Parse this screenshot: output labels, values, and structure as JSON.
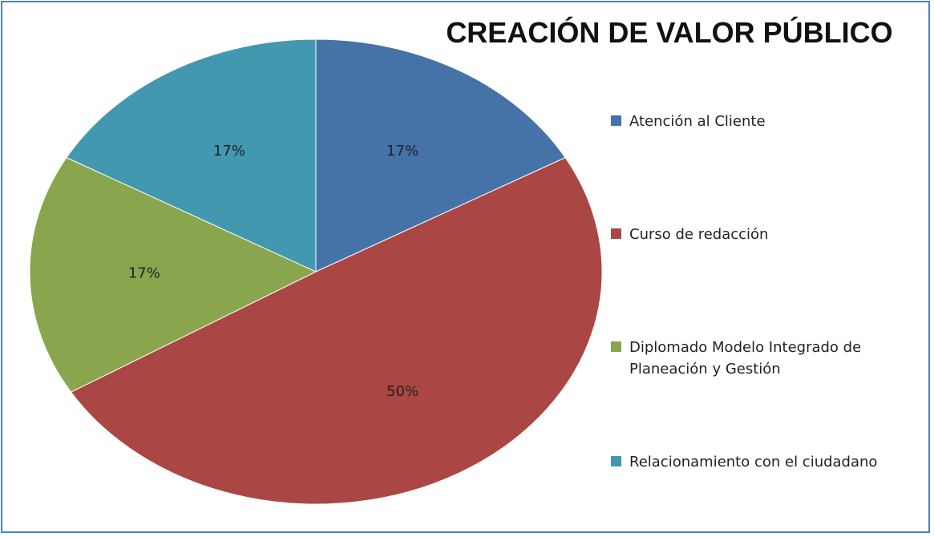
{
  "chart_data": {
    "type": "pie",
    "title": "CREACIÓN DE VALOR PÚBLICO",
    "categories": [
      "Atención al Cliente",
      "Curso de redacción",
      "Diplomado Modelo Integrado de Planeación y Gestión",
      "Relacionamiento con el ciudadano"
    ],
    "values": [
      17,
      50,
      17,
      17
    ],
    "value_labels": [
      "17%",
      "50%",
      "17%",
      "17%"
    ],
    "colors": [
      "#4572a7",
      "#aa4643",
      "#89a54e",
      "#4198af"
    ],
    "legend": "right"
  }
}
